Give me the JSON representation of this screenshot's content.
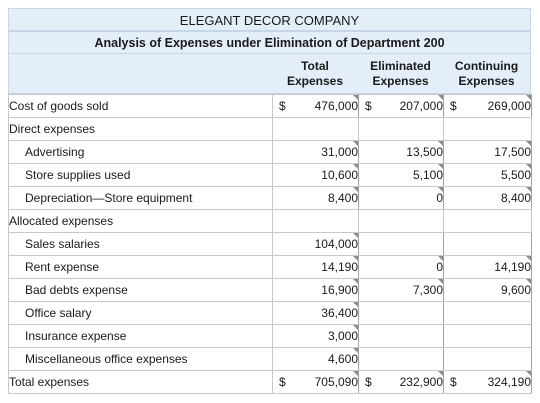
{
  "title": "ELEGANT DECOR COMPANY",
  "subtitle": "Analysis of Expenses under Elimination of Department 200",
  "columns": [
    {
      "line1": "Total",
      "line2": "Expenses"
    },
    {
      "line1": "Eliminated",
      "line2": "Expenses"
    },
    {
      "line1": "Continuing",
      "line2": "Expenses"
    }
  ],
  "rows": [
    {
      "label": "Cost of goods sold",
      "indent": false,
      "total": "476,000",
      "eliminated": "207,000",
      "continuing": "269,000",
      "dollar": "$"
    },
    {
      "label": "Direct expenses",
      "indent": false,
      "total": "",
      "eliminated": "",
      "continuing": ""
    },
    {
      "label": "Advertising",
      "indent": true,
      "total": "31,000",
      "eliminated": "13,500",
      "continuing": "17,500"
    },
    {
      "label": "Store supplies used",
      "indent": true,
      "total": "10,600",
      "eliminated": "5,100",
      "continuing": "5,500"
    },
    {
      "label": "Depreciation—Store equipment",
      "indent": true,
      "total": "8,400",
      "eliminated": "0",
      "continuing": "8,400"
    },
    {
      "label": "Allocated expenses",
      "indent": false,
      "total": "",
      "eliminated": "",
      "continuing": ""
    },
    {
      "label": "Sales salaries",
      "indent": true,
      "total": "104,000",
      "eliminated": "",
      "continuing": ""
    },
    {
      "label": "Rent expense",
      "indent": true,
      "total": "14,190",
      "eliminated": "0",
      "continuing": "14,190"
    },
    {
      "label": "Bad debts expense",
      "indent": true,
      "total": "16,900",
      "eliminated": "7,300",
      "continuing": "9,600"
    },
    {
      "label": "Office salary",
      "indent": true,
      "total": "36,400",
      "eliminated": "",
      "continuing": ""
    },
    {
      "label": "Insurance expense",
      "indent": true,
      "total": "3,000",
      "eliminated": "",
      "continuing": ""
    },
    {
      "label": "Miscellaneous office expenses",
      "indent": true,
      "total": "4,600",
      "eliminated": "",
      "continuing": ""
    },
    {
      "label": "Total expenses",
      "indent": false,
      "total": "705,090",
      "eliminated": "232,900",
      "continuing": "324,190",
      "dollar": "$"
    }
  ]
}
